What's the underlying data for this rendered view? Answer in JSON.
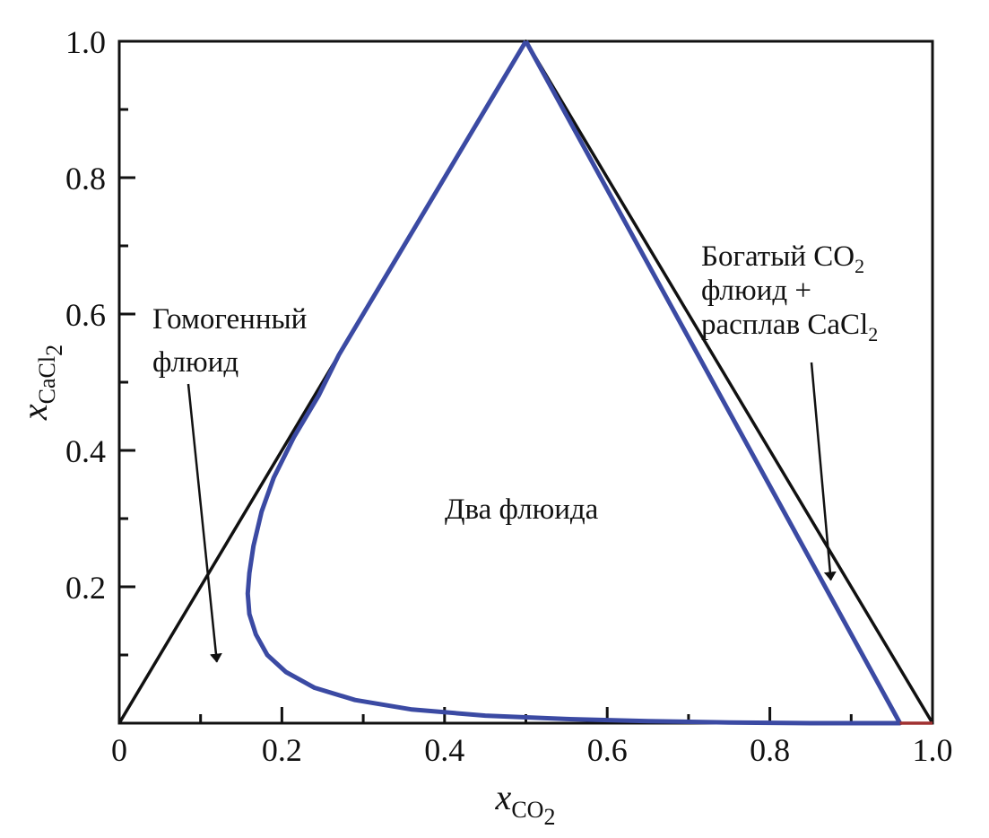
{
  "chart_data": {
    "type": "line",
    "title": "",
    "xlabel": {
      "var": "x",
      "sub": "CO",
      "sub2": "2"
    },
    "ylabel": {
      "var": "x",
      "sub": "CaCl",
      "sub2": "2"
    },
    "xlim": [
      0,
      1
    ],
    "ylim": [
      0,
      1
    ],
    "grid": false,
    "x_ticks": [
      "0",
      "0.2",
      "0.4",
      "0.6",
      "0.8",
      "1.0"
    ],
    "y_ticks": [
      "0.2",
      "0.4",
      "0.6",
      "0.8",
      "1.0"
    ],
    "series": [
      {
        "color": "#111111",
        "points": [
          [
            0,
            0
          ],
          [
            0.5,
            1
          ],
          [
            1,
            0
          ]
        ]
      },
      {
        "color": "#3b4aa3",
        "points": [
          [
            0.5,
            1.0
          ],
          [
            0.46,
            0.92
          ],
          [
            0.42,
            0.84
          ],
          [
            0.38,
            0.76
          ],
          [
            0.34,
            0.68
          ],
          [
            0.3,
            0.6
          ],
          [
            0.27,
            0.54
          ],
          [
            0.245,
            0.48
          ],
          [
            0.215,
            0.42
          ],
          [
            0.19,
            0.36
          ],
          [
            0.175,
            0.31
          ],
          [
            0.165,
            0.26
          ],
          [
            0.16,
            0.22
          ],
          [
            0.158,
            0.19
          ],
          [
            0.16,
            0.16
          ],
          [
            0.168,
            0.13
          ],
          [
            0.182,
            0.1
          ],
          [
            0.205,
            0.075
          ],
          [
            0.24,
            0.052
          ],
          [
            0.29,
            0.034
          ],
          [
            0.36,
            0.02
          ],
          [
            0.45,
            0.011
          ],
          [
            0.55,
            0.006
          ],
          [
            0.65,
            0.003
          ],
          [
            0.75,
            0.001
          ],
          [
            0.85,
            0.0
          ],
          [
            0.96,
            0.0
          ],
          [
            0.5,
            1.0
          ]
        ]
      },
      {
        "color": "#a03030",
        "points": [
          [
            0.96,
            0.0
          ],
          [
            1.0,
            0.0
          ]
        ]
      }
    ],
    "annotations": [
      {
        "lines": [
          "Гомогенный",
          "флюид"
        ],
        "arrow_to": [
          0.12,
          0.09
        ]
      },
      {
        "lines": [
          "Два флюида"
        ]
      },
      {
        "lines": [
          [
            "Богатый CO",
            "2",
            ""
          ],
          [
            "флюид +"
          ],
          [
            "расплав CaCl",
            "2",
            ""
          ]
        ],
        "arrow_to": [
          0.875,
          0.21
        ]
      }
    ]
  }
}
